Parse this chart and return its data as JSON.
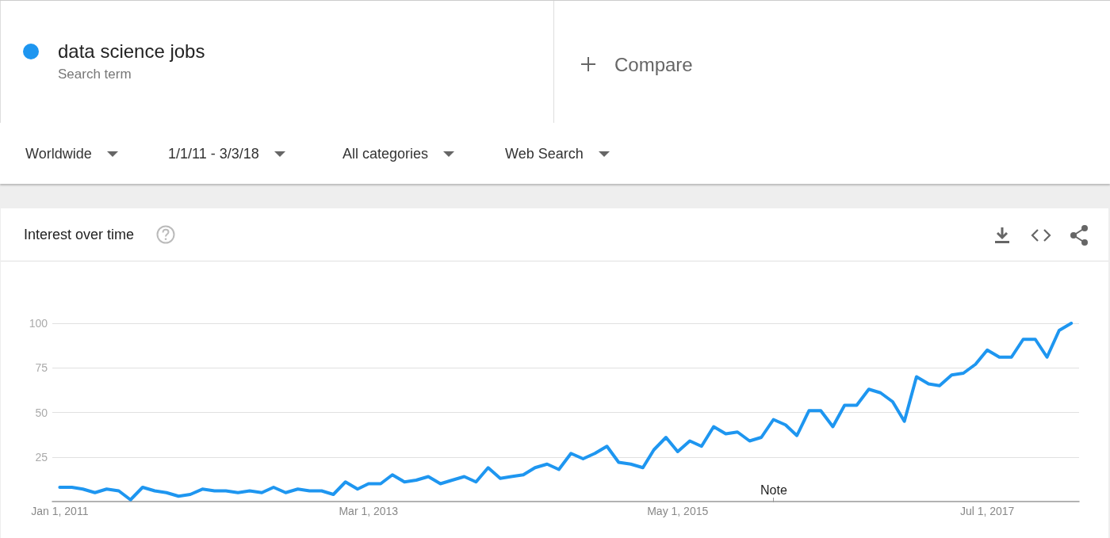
{
  "chart_data": {
    "type": "line",
    "title": "Interest over time",
    "annotations": [
      "Search term",
      "Compare",
      "Worldwide",
      "1/1/11 - 3/3/18",
      "All categories",
      "Web Search",
      "Note"
    ],
    "x": [
      "2011-01",
      "2011-02",
      "2011-03",
      "2011-04",
      "2011-05",
      "2011-06",
      "2011-07",
      "2011-08",
      "2011-09",
      "2011-10",
      "2011-11",
      "2011-12",
      "2012-01",
      "2012-02",
      "2012-03",
      "2012-04",
      "2012-05",
      "2012-06",
      "2012-07",
      "2012-08",
      "2012-09",
      "2012-10",
      "2012-11",
      "2012-12",
      "2013-01",
      "2013-02",
      "2013-03",
      "2013-04",
      "2013-05",
      "2013-06",
      "2013-07",
      "2013-08",
      "2013-09",
      "2013-10",
      "2013-11",
      "2013-12",
      "2014-01",
      "2014-02",
      "2014-03",
      "2014-04",
      "2014-05",
      "2014-06",
      "2014-07",
      "2014-08",
      "2014-09",
      "2014-10",
      "2014-11",
      "2014-12",
      "2015-01",
      "2015-02",
      "2015-03",
      "2015-04",
      "2015-05",
      "2015-06",
      "2015-07",
      "2015-08",
      "2015-09",
      "2015-10",
      "2015-11",
      "2015-12",
      "2016-01",
      "2016-02",
      "2016-03",
      "2016-04",
      "2016-05",
      "2016-06",
      "2016-07",
      "2016-08",
      "2016-09",
      "2016-10",
      "2016-11",
      "2016-12",
      "2017-01",
      "2017-02",
      "2017-03",
      "2017-04",
      "2017-05",
      "2017-06",
      "2017-07",
      "2017-08",
      "2017-09",
      "2017-10",
      "2017-11",
      "2017-12",
      "2018-01",
      "2018-02"
    ],
    "series": [
      {
        "name": "data science jobs",
        "color": "#1e96f0",
        "values": [
          8,
          8,
          7,
          5,
          7,
          6,
          1,
          8,
          6,
          5,
          3,
          4,
          7,
          6,
          6,
          5,
          6,
          5,
          8,
          5,
          7,
          6,
          6,
          4,
          11,
          7,
          10,
          10,
          15,
          11,
          12,
          14,
          10,
          12,
          14,
          11,
          19,
          13,
          14,
          15,
          19,
          21,
          18,
          27,
          24,
          27,
          31,
          22,
          21,
          19,
          29,
          36,
          28,
          34,
          31,
          42,
          38,
          39,
          34,
          36,
          46,
          43,
          37,
          51,
          51,
          42,
          54,
          54,
          63,
          61,
          56,
          45,
          70,
          66,
          65,
          71,
          72,
          77,
          85,
          81,
          81,
          91,
          91,
          81,
          96,
          100
        ]
      }
    ],
    "xlim": [
      "2010-12-13",
      "2018-02-21"
    ],
    "xticks": [
      {
        "value": "2011-01-01",
        "label": "Jan 1, 2011"
      },
      {
        "value": "2013-03-01",
        "label": "Mar 1, 2013"
      },
      {
        "value": "2015-05-01",
        "label": "May 1, 2015"
      },
      {
        "value": "2017-07-01",
        "label": "Jul 1, 2017"
      }
    ],
    "ylim": [
      0,
      100
    ],
    "yticks": [
      25,
      50,
      75,
      100
    ],
    "grid": "y",
    "legend": "top left",
    "marker": "none",
    "line_style": "solid"
  }
}
